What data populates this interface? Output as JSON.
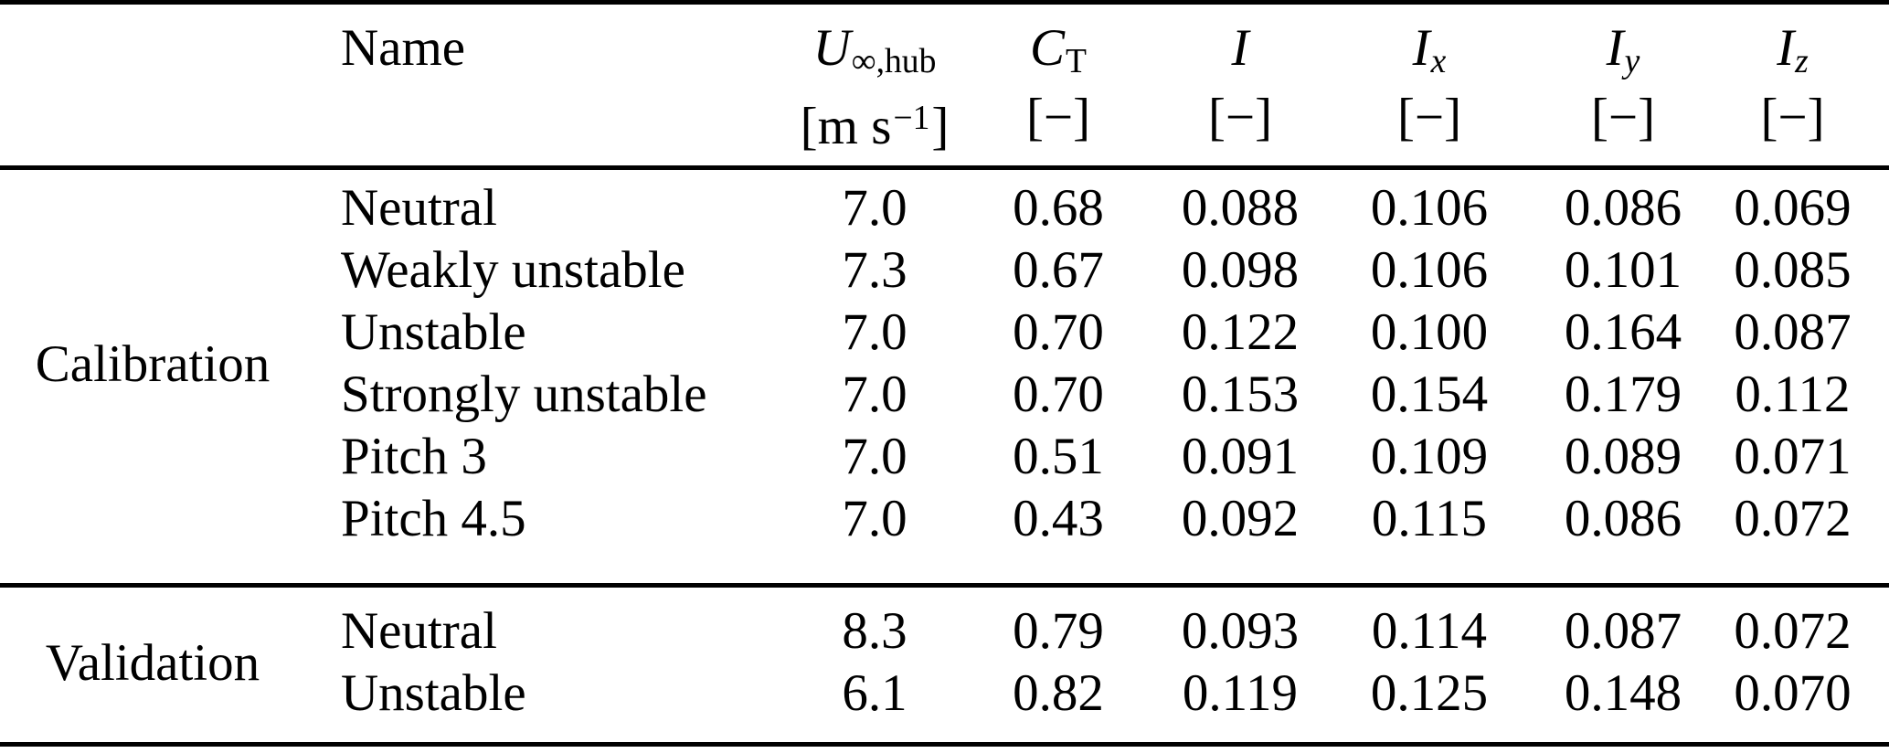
{
  "table": {
    "header": {
      "name": "Name",
      "u": {
        "symbol": "U",
        "subscript": "∞,hub",
        "unit_open": "[m s",
        "unit_sup": "−1",
        "unit_close": "]"
      },
      "ct": {
        "symbol": "C",
        "subscript": "T",
        "unit": "[−]"
      },
      "i": {
        "symbol": "I",
        "unit": "[−]"
      },
      "ix": {
        "symbol": "I",
        "subscript": "x",
        "unit": "[−]"
      },
      "iy": {
        "symbol": "I",
        "subscript": "y",
        "unit": "[−]"
      },
      "iz": {
        "symbol": "I",
        "subscript": "z",
        "unit": "[−]"
      }
    },
    "sections": [
      {
        "label": "Calibration",
        "rows": [
          {
            "name": "Neutral",
            "u": "7.0",
            "ct": "0.68",
            "i": "0.088",
            "ix": "0.106",
            "iy": "0.086",
            "iz": "0.069"
          },
          {
            "name": "Weakly unstable",
            "u": "7.3",
            "ct": "0.67",
            "i": "0.098",
            "ix": "0.106",
            "iy": "0.101",
            "iz": "0.085"
          },
          {
            "name": "Unstable",
            "u": "7.0",
            "ct": "0.70",
            "i": "0.122",
            "ix": "0.100",
            "iy": "0.164",
            "iz": "0.087"
          },
          {
            "name": "Strongly unstable",
            "u": "7.0",
            "ct": "0.70",
            "i": "0.153",
            "ix": "0.154",
            "iy": "0.179",
            "iz": "0.112"
          },
          {
            "name": "Pitch 3",
            "u": "7.0",
            "ct": "0.51",
            "i": "0.091",
            "ix": "0.109",
            "iy": "0.089",
            "iz": "0.071"
          },
          {
            "name": "Pitch 4.5",
            "u": "7.0",
            "ct": "0.43",
            "i": "0.092",
            "ix": "0.115",
            "iy": "0.086",
            "iz": "0.072"
          }
        ]
      },
      {
        "label": "Validation",
        "rows": [
          {
            "name": "Neutral",
            "u": "8.3",
            "ct": "0.79",
            "i": "0.093",
            "ix": "0.114",
            "iy": "0.087",
            "iz": "0.072"
          },
          {
            "name": "Unstable",
            "u": "6.1",
            "ct": "0.82",
            "i": "0.119",
            "ix": "0.125",
            "iy": "0.148",
            "iz": "0.070"
          }
        ]
      }
    ]
  }
}
